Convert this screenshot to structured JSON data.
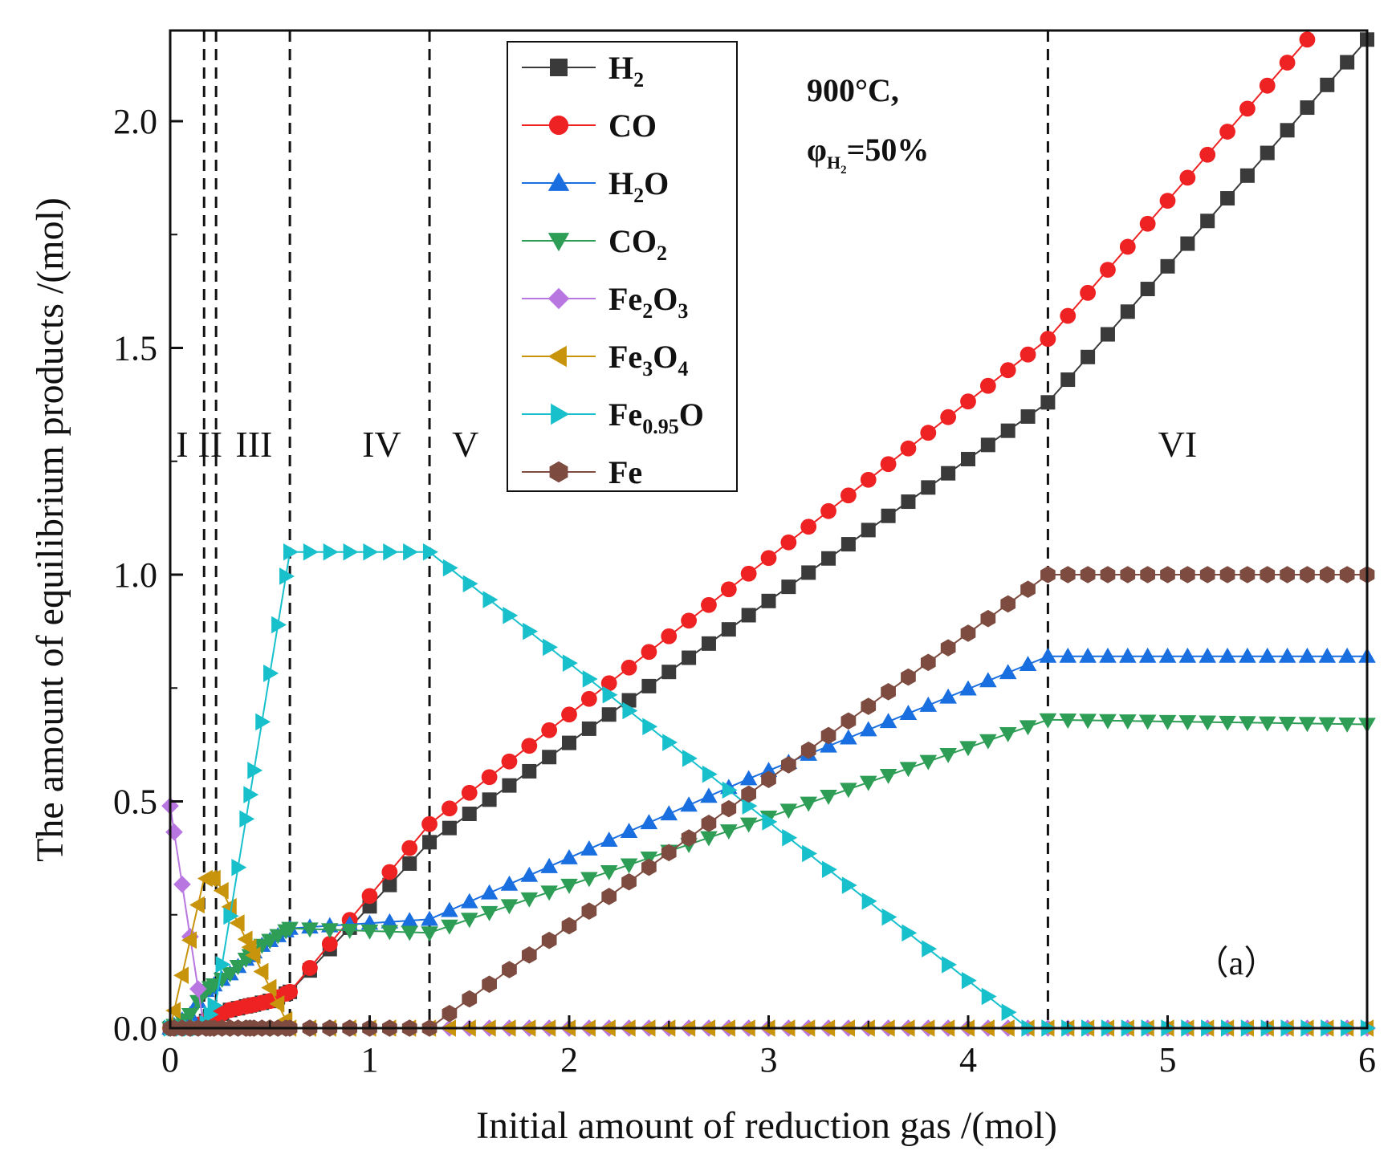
{
  "chart_data": {
    "type": "line",
    "xlabel": "Initial amount of reduction gas /(mol)",
    "ylabel": "The amount of equilibrium products /(mol)",
    "xlim": [
      0,
      6
    ],
    "ylim": [
      0,
      2.2
    ],
    "xticks": [
      0,
      1,
      2,
      3,
      4,
      5,
      6
    ],
    "yticks": [
      0.0,
      0.5,
      1.0,
      1.5,
      2.0
    ],
    "xtick_labels": [
      "0",
      "1",
      "2",
      "3",
      "4",
      "5",
      "6"
    ],
    "ytick_labels": [
      "0.0",
      "0.5",
      "1.0",
      "1.5",
      "2.0"
    ],
    "annotation_lines": [
      "900°C,",
      "φ",
      "H",
      "2",
      "=50%"
    ],
    "panel_label": "（a）",
    "region_boundaries": [
      0.17,
      0.23,
      0.6,
      1.3,
      4.4
    ],
    "regions": [
      {
        "label": "I",
        "x": 0.06
      },
      {
        "label": "II",
        "x": 0.2
      },
      {
        "label": "III",
        "x": 0.42
      },
      {
        "label": "IV",
        "x": 1.06
      },
      {
        "label": "V",
        "x": 1.48
      },
      {
        "label": "VI",
        "x": 5.05
      }
    ],
    "series": [
      {
        "name": "H2",
        "legend": [
          {
            "t": "H"
          },
          {
            "t": "2",
            "sub": true
          }
        ],
        "color": "#3a3a3a",
        "marker": "square",
        "points": [
          [
            0,
            0
          ],
          [
            0.1,
            0
          ],
          [
            0.2,
            0.02
          ],
          [
            0.3,
            0.04
          ],
          [
            0.4,
            0.05
          ],
          [
            0.5,
            0.06
          ],
          [
            0.6,
            0.08
          ],
          [
            1.3,
            0.41
          ],
          [
            4.4,
            1.38
          ],
          [
            6,
            2.18
          ]
        ]
      },
      {
        "name": "CO",
        "legend": [
          {
            "t": "CO"
          }
        ],
        "color": "#ee2222",
        "marker": "circle",
        "points": [
          [
            0,
            0
          ],
          [
            0.1,
            0
          ],
          [
            0.2,
            0.02
          ],
          [
            0.3,
            0.04
          ],
          [
            0.4,
            0.05
          ],
          [
            0.5,
            0.06
          ],
          [
            0.6,
            0.08
          ],
          [
            1.3,
            0.45
          ],
          [
            4.4,
            1.52
          ],
          [
            5.7,
            2.18
          ]
        ]
      },
      {
        "name": "H2O",
        "legend": [
          {
            "t": "H"
          },
          {
            "t": "2",
            "sub": true
          },
          {
            "t": "O"
          }
        ],
        "color": "#1a6fe0",
        "marker": "triangle-up",
        "points": [
          [
            0,
            0
          ],
          [
            0.1,
            0.03
          ],
          [
            0.17,
            0.08
          ],
          [
            0.3,
            0.12
          ],
          [
            0.45,
            0.18
          ],
          [
            0.6,
            0.22
          ],
          [
            1.3,
            0.24
          ],
          [
            2.9,
            0.55
          ],
          [
            4.4,
            0.82
          ],
          [
            6,
            0.82
          ]
        ]
      },
      {
        "name": "CO2",
        "legend": [
          {
            "t": "CO"
          },
          {
            "t": "2",
            "sub": true
          }
        ],
        "color": "#2e9e56",
        "marker": "triangle-down",
        "points": [
          [
            0,
            0
          ],
          [
            0.1,
            0.03
          ],
          [
            0.17,
            0.08
          ],
          [
            0.3,
            0.12
          ],
          [
            0.45,
            0.18
          ],
          [
            0.6,
            0.22
          ],
          [
            1.3,
            0.21
          ],
          [
            2.9,
            0.45
          ],
          [
            4.4,
            0.68
          ],
          [
            6,
            0.67
          ]
        ]
      },
      {
        "name": "Fe2O3",
        "legend": [
          {
            "t": "Fe"
          },
          {
            "t": "2",
            "sub": true
          },
          {
            "t": "O"
          },
          {
            "t": "3",
            "sub": true
          }
        ],
        "color": "#b877e0",
        "marker": "diamond",
        "points": [
          [
            0,
            0.49
          ],
          [
            0.17,
            0
          ],
          [
            6,
            0
          ]
        ]
      },
      {
        "name": "Fe3O4",
        "legend": [
          {
            "t": "Fe"
          },
          {
            "t": "3",
            "sub": true
          },
          {
            "t": "O"
          },
          {
            "t": "4",
            "sub": true
          }
        ],
        "color": "#c8940c",
        "marker": "triangle-left",
        "points": [
          [
            0,
            0
          ],
          [
            0.17,
            0.33
          ],
          [
            0.23,
            0.33
          ],
          [
            0.6,
            0
          ],
          [
            6,
            0
          ]
        ]
      },
      {
        "name": "Fe0.95O",
        "legend": [
          {
            "t": "Fe"
          },
          {
            "t": "0.95",
            "sub": true
          },
          {
            "t": "O"
          }
        ],
        "color": "#18c0cc",
        "marker": "triangle-right",
        "points": [
          [
            0,
            0
          ],
          [
            0.17,
            0
          ],
          [
            0.23,
            0.06
          ],
          [
            0.6,
            1.05
          ],
          [
            1.3,
            1.05
          ],
          [
            4.3,
            0
          ],
          [
            6,
            0
          ]
        ]
      },
      {
        "name": "Fe",
        "legend": [
          {
            "t": "Fe"
          }
        ],
        "color": "#7d4b40",
        "marker": "hexagon",
        "points": [
          [
            0,
            0
          ],
          [
            1.3,
            0
          ],
          [
            4.4,
            1.0
          ],
          [
            6,
            1.0
          ]
        ]
      }
    ]
  }
}
